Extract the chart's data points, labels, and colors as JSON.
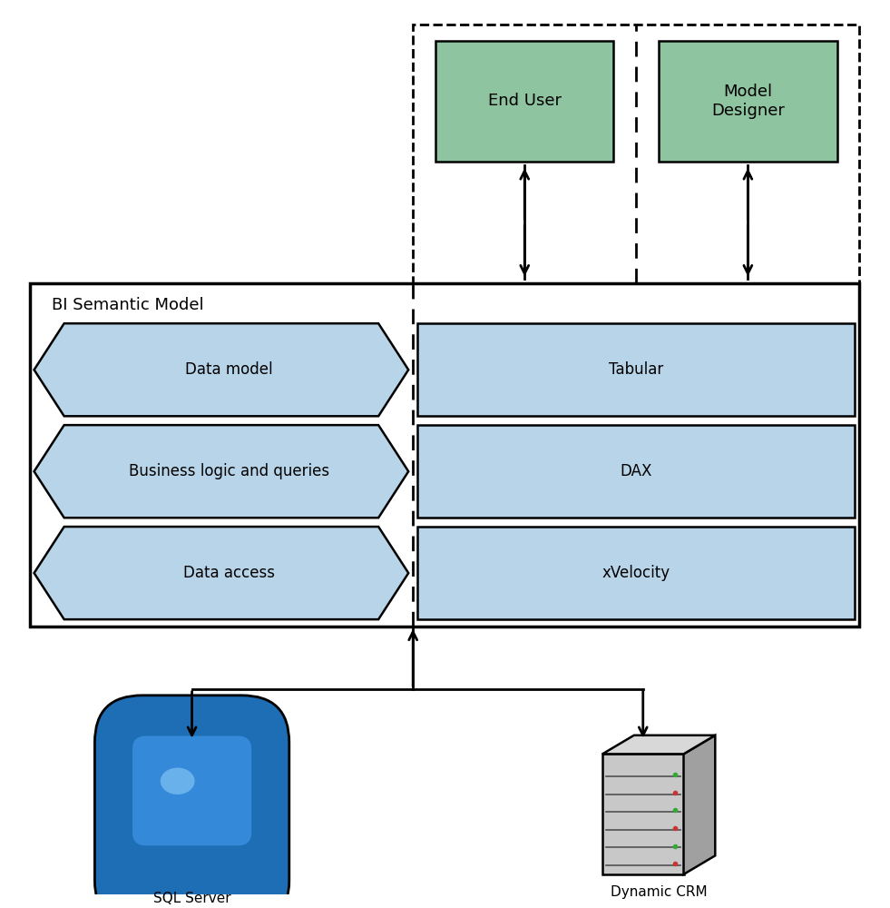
{
  "bg_color": "#ffffff",
  "blue_fill": "#b8d4e8",
  "blue_edge": "#000000",
  "green_fill": "#8fc4a0",
  "left_labels": [
    "Data model",
    "Business logic and queries",
    "Data access"
  ],
  "right_labels": [
    "Tabular",
    "DAX",
    "xVelocity"
  ],
  "top_labels": [
    "End User",
    "Model\nDesigner"
  ],
  "bottom_labels": [
    "SQL Server",
    "Dynamic CRM"
  ],
  "bism_label": "BI Semantic Model"
}
